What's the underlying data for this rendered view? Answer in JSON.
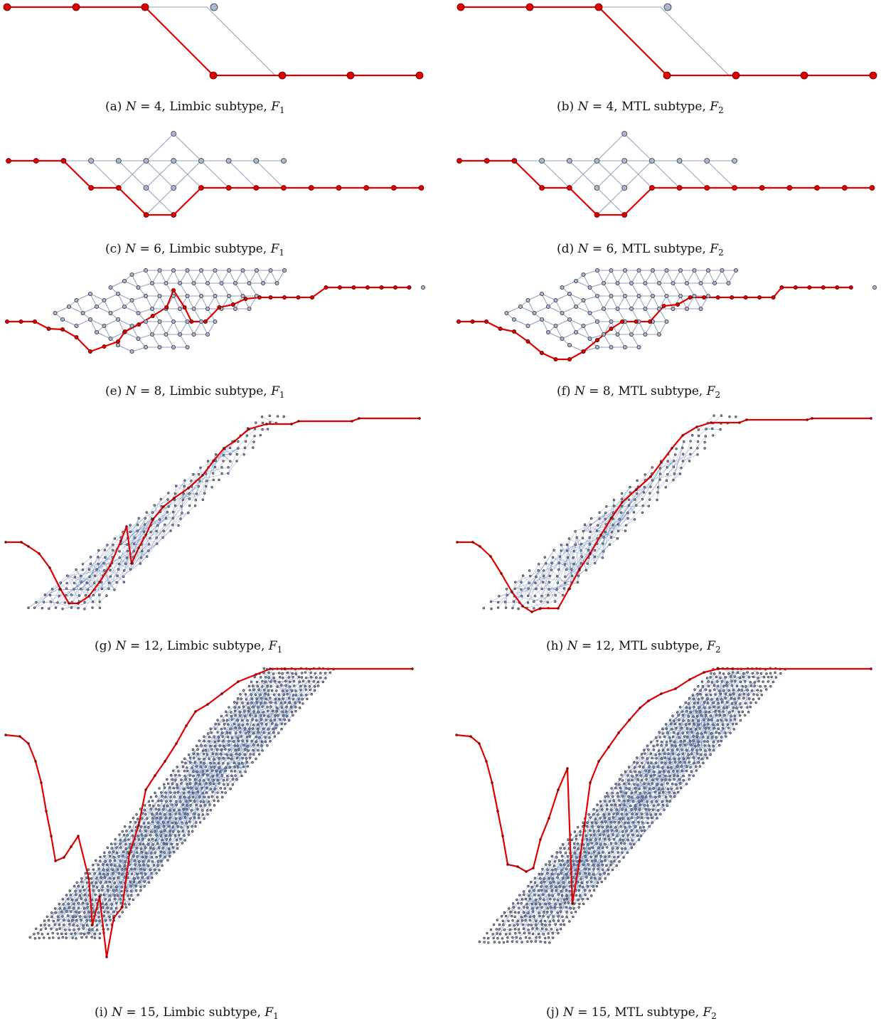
{
  "panels": [
    {
      "id": "a",
      "tag": "(a)",
      "N": "4",
      "subtype": "Limbic subtype",
      "F": "1"
    },
    {
      "id": "b",
      "tag": "(b)",
      "N": "4",
      "subtype": "MTL subtype",
      "F": "2"
    },
    {
      "id": "c",
      "tag": "(c)",
      "N": "6",
      "subtype": "Limbic subtype",
      "F": "1"
    },
    {
      "id": "d",
      "tag": "(d)",
      "N": "6",
      "subtype": "MTL subtype",
      "F": "2"
    },
    {
      "id": "e",
      "tag": "(e)",
      "N": "8",
      "subtype": "Limbic subtype",
      "F": "1"
    },
    {
      "id": "f",
      "tag": "(f)",
      "N": "8",
      "subtype": "MTL subtype",
      "F": "2"
    },
    {
      "id": "g",
      "tag": "(g)",
      "N": "12",
      "subtype": "Limbic subtype",
      "F": "1"
    },
    {
      "id": "h",
      "tag": "(h)",
      "N": "12",
      "subtype": "MTL subtype",
      "F": "2"
    },
    {
      "id": "i",
      "tag": "(i)",
      "N": "15",
      "subtype": "Limbic subtype",
      "F": "1"
    },
    {
      "id": "j",
      "tag": "(j)",
      "N": "15",
      "subtype": "MTL subtype",
      "F": "2"
    }
  ],
  "colors": {
    "path": "#e00000",
    "node": "#a9b6cc",
    "edge": "#8fa0bd",
    "dense_edge": "#5f7fb8"
  }
}
